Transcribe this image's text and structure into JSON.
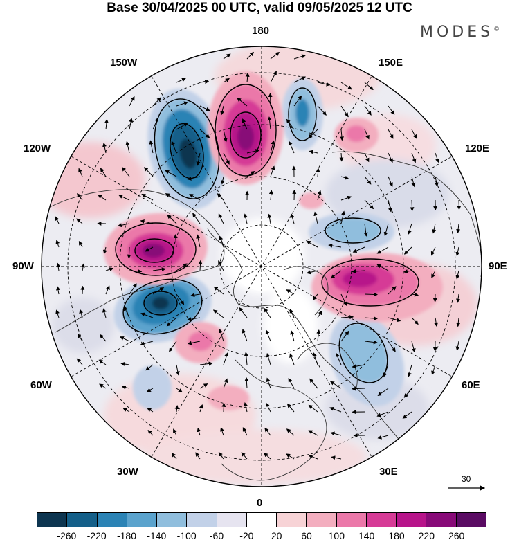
{
  "title": "Base 30/04/2025 00 UTC, valid 09/05/2025 12 UTC",
  "brand": "MODES",
  "brand_mark": "©",
  "longitudes": {
    "top": "180",
    "bottom": "0",
    "left": "90W",
    "right": "90E",
    "upper_left_1": "150W",
    "upper_left_2": "120W",
    "upper_right_1": "150E",
    "upper_right_2": "120E",
    "lower_left_1": "60W",
    "lower_left_2": "30W",
    "lower_right_1": "60E",
    "lower_right_2": "30E"
  },
  "reference_vector_label": "30",
  "colorbar": {
    "colors": [
      "#0d3550",
      "#145f89",
      "#2b83b5",
      "#5ba3cd",
      "#90bedd",
      "#c2d1e8",
      "#e6e4f0",
      "#ffffff",
      "#f7d3d6",
      "#f3aebf",
      "#eb78a9",
      "#d63b96",
      "#b7148a",
      "#880a78",
      "#5a0b63"
    ],
    "ticks": [
      "-260",
      "-220",
      "-180",
      "-140",
      "-100",
      "-60",
      "-20",
      "20",
      "60",
      "100",
      "140",
      "180",
      "220",
      "260"
    ]
  },
  "icons": {
    "reference_arrow": "arrow-right-icon"
  }
}
